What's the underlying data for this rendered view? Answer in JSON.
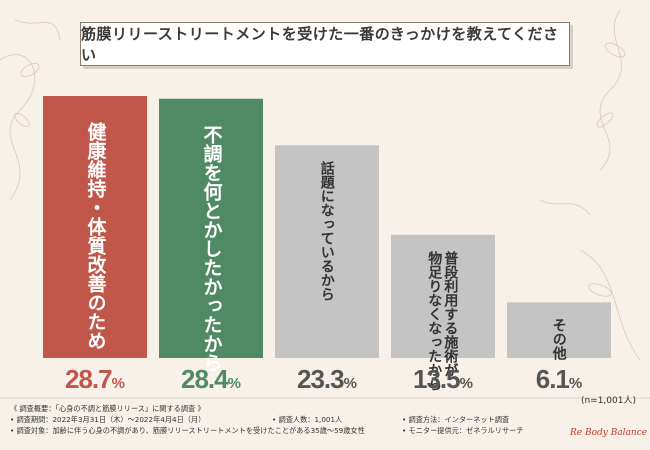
{
  "title": "筋膜リリーストリートメントを受けた一番のきっかけを教えてください",
  "chart_data": {
    "type": "bar",
    "title": "筋膜リリーストリートメントを受けた一番のきっかけを教えてください",
    "categories": [
      "健康維持・体質改善のため",
      "不調を何とかしたかったから",
      "話題になっているから",
      "普段利用する施術が物足りなくなったから",
      "その他"
    ],
    "label_columns": [
      [
        "健康維持・体質改善のため"
      ],
      [
        "不調を何とかしたかったから"
      ],
      [
        "話題になっているから"
      ],
      [
        "普段利用する施術が",
        "物足りなくなったから"
      ],
      [
        "その他"
      ]
    ],
    "values": [
      28.7,
      28.4,
      23.3,
      13.5,
      6.1
    ],
    "value_labels": [
      "28.7",
      "28.4",
      "23.3",
      "13.5",
      "6.1"
    ],
    "unit": "%",
    "colors": [
      "#c0574a",
      "#4f8a64",
      "#c4c4c4",
      "#c4c4c4",
      "#c4c4c4"
    ],
    "pct_colors": [
      "#c0574a",
      "#4f8a64",
      "#555555",
      "#555555",
      "#555555"
    ],
    "label_colors": [
      "#ffffff",
      "#ffffff",
      "#333333",
      "#333333",
      "#333333"
    ],
    "ylim": [
      0,
      28.7
    ],
    "xlabel": "",
    "ylabel": ""
  },
  "sample_note": "(n=1,001人)",
  "survey": {
    "overview": "《 調査概要：「心身の不調と筋膜リリース」に関する調査 》",
    "period": "• 調査期間：2022年3月31日（木）～2022年4月4日（月）",
    "people": "• 調査人数：1,001人",
    "method": "• 調査方法：インターネット調査",
    "target": "• 調査対象：加齢に伴う心身の不調があり、筋膜リリーストリートメントを受けたことがある35歳～59歳女性",
    "provider": "• モニター提供元：ゼネラルリサーチ"
  },
  "brand": "Re Body Balance"
}
